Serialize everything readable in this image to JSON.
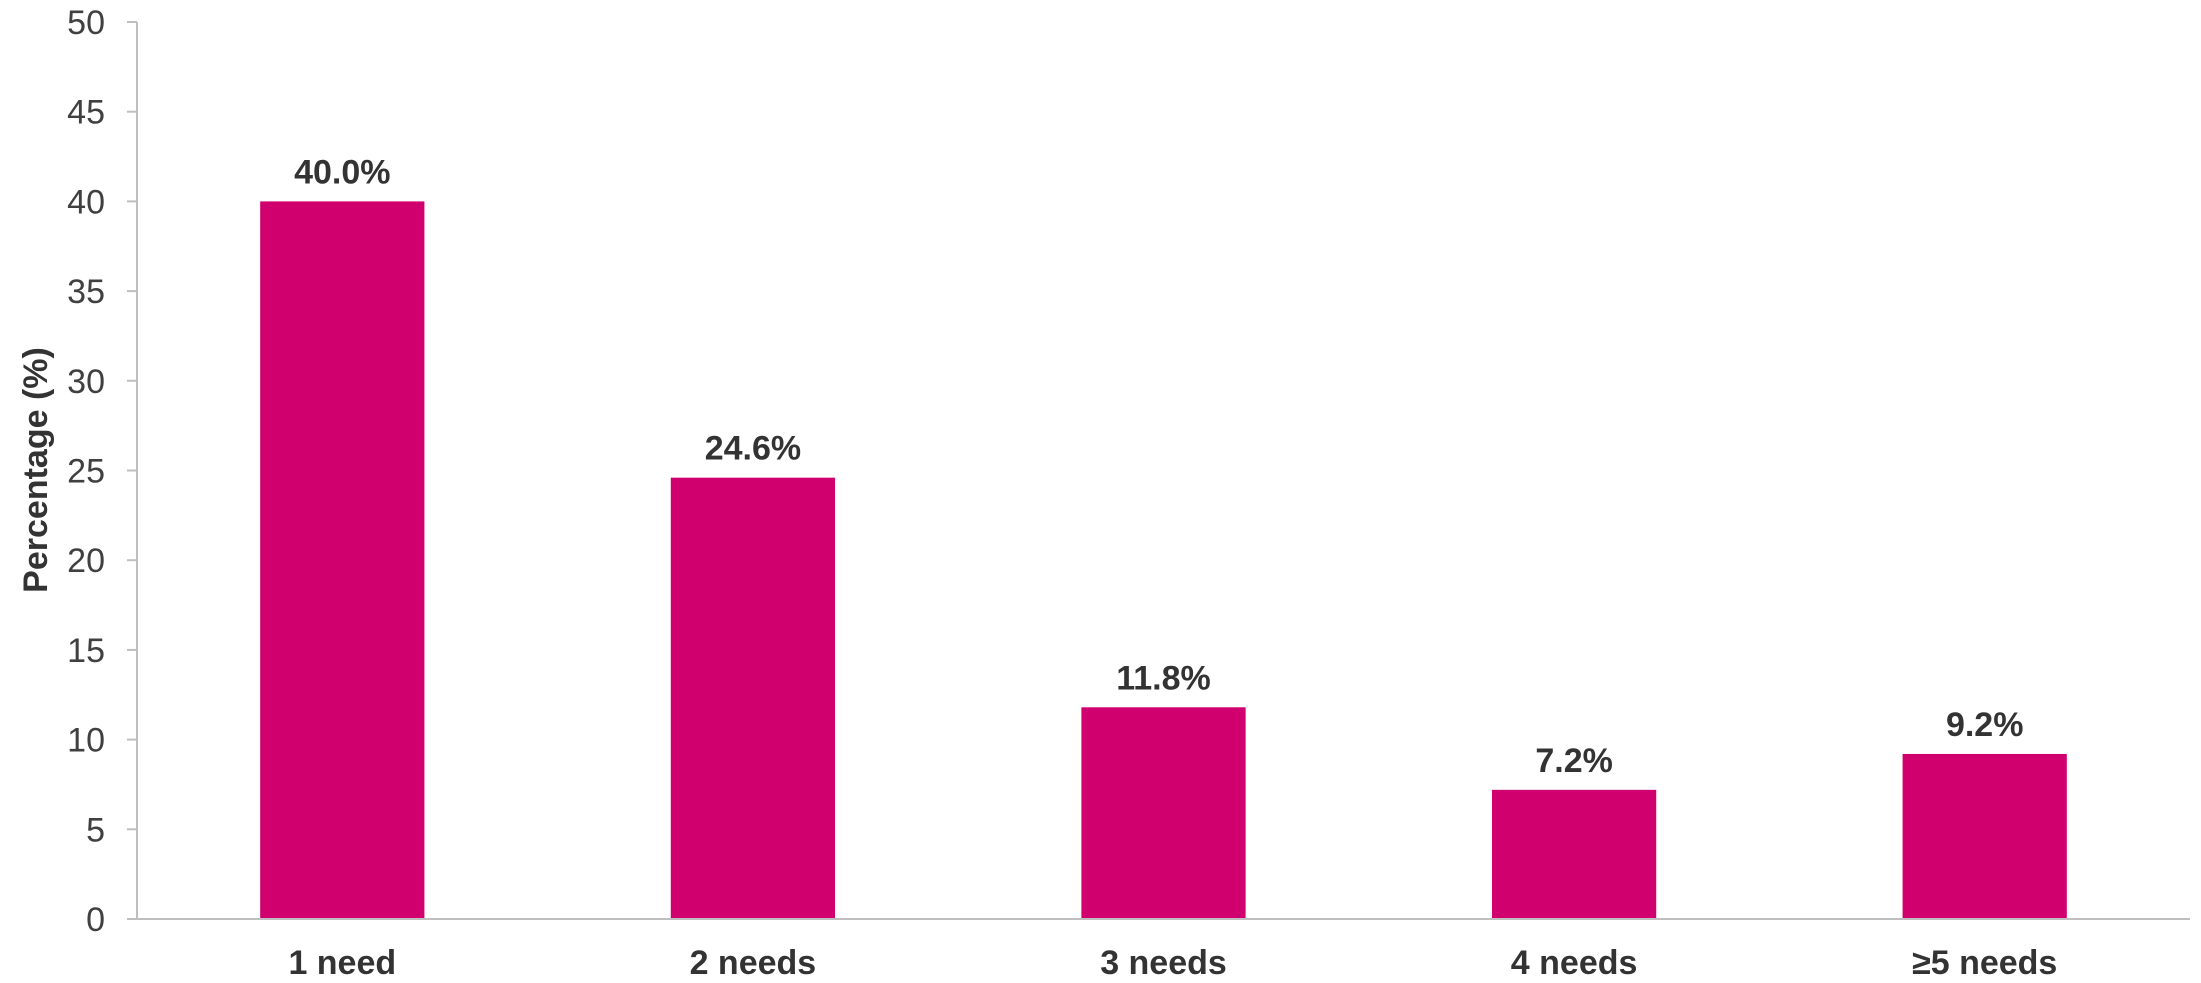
{
  "chart_data": {
    "type": "bar",
    "categories": [
      "1 need",
      "2 needs",
      "3 needs",
      "4 needs",
      "≥5 needs"
    ],
    "values": [
      40.0,
      24.6,
      11.8,
      7.2,
      9.2
    ],
    "data_labels": [
      "40.0%",
      "24.6%",
      "11.8%",
      "7.2%",
      "9.2%"
    ],
    "title": "",
    "xlabel": "",
    "ylabel": "Percentage (%)",
    "ylim": [
      0,
      50
    ],
    "yticks": [
      0,
      5,
      10,
      15,
      20,
      25,
      30,
      35,
      40,
      45,
      50
    ],
    "grid": false,
    "legend": "none",
    "bar_color": "#D0006F",
    "axis_color": "#BFBFBF"
  }
}
